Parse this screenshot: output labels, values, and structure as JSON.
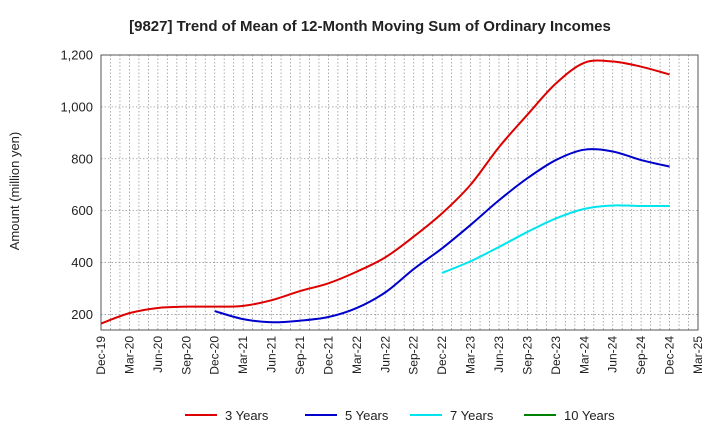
{
  "chart_data": {
    "type": "line",
    "title": "[9827]  Trend of Mean of 12-Month Moving Sum of Ordinary Incomes",
    "xlabel": "",
    "ylabel": "Amount (million yen)",
    "ylim": [
      140,
      1200
    ],
    "yticks": [
      200,
      400,
      600,
      800,
      1000,
      1200
    ],
    "ytick_labels": [
      "200",
      "400",
      "600",
      "800",
      "1,000",
      "1,200"
    ],
    "categories": [
      "Dec-19",
      "Mar-20",
      "Jun-20",
      "Sep-20",
      "Dec-20",
      "Mar-21",
      "Jun-21",
      "Sep-21",
      "Dec-21",
      "Mar-22",
      "Jun-22",
      "Sep-22",
      "Dec-22",
      "Mar-23",
      "Jun-23",
      "Sep-23",
      "Dec-23",
      "Mar-24",
      "Jun-24",
      "Sep-24",
      "Dec-24",
      "Mar-25"
    ],
    "grid": true,
    "legend_position": "bottom",
    "series": [
      {
        "name": "3 Years",
        "color": "#dd0000",
        "values": [
          165,
          205,
          225,
          230,
          230,
          233,
          255,
          290,
          320,
          365,
          420,
          500,
          590,
          700,
          845,
          970,
          1090,
          1170,
          1175,
          1155,
          1125,
          null
        ]
      },
      {
        "name": "5 Years",
        "color": "#0000cc",
        "values": [
          null,
          null,
          null,
          null,
          213,
          182,
          170,
          176,
          190,
          225,
          285,
          375,
          455,
          545,
          640,
          725,
          795,
          835,
          828,
          795,
          770,
          null
        ]
      },
      {
        "name": "7 Years",
        "color": "#00e5ee",
        "values": [
          null,
          null,
          null,
          null,
          null,
          null,
          null,
          null,
          null,
          null,
          null,
          null,
          360,
          405,
          460,
          518,
          570,
          607,
          620,
          618,
          618,
          null
        ]
      },
      {
        "name": "10 Years",
        "color": "#008000",
        "values": [
          null,
          null,
          null,
          null,
          null,
          null,
          null,
          null,
          null,
          null,
          null,
          null,
          null,
          null,
          null,
          null,
          null,
          null,
          null,
          null,
          null,
          null
        ]
      }
    ]
  }
}
